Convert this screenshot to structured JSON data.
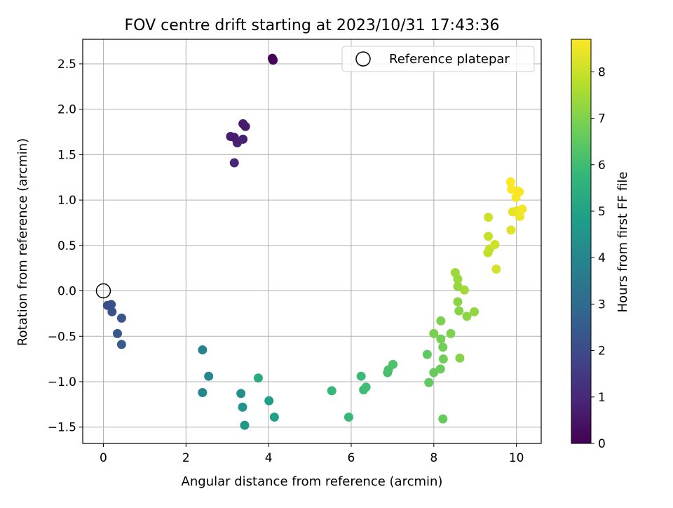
{
  "chart_data": {
    "type": "scatter",
    "title": "FOV centre drift starting at 2023/10/31 17:43:36",
    "xlabel": "Angular distance from reference (arcmin)",
    "ylabel": "Rotation from reference (arcmin)",
    "xlim": [
      -0.5,
      10.6
    ],
    "ylim": [
      -1.68,
      2.77
    ],
    "xticks": [
      0,
      2,
      4,
      6,
      8,
      10
    ],
    "xtick_labels": [
      "0",
      "2",
      "4",
      "6",
      "8",
      "10"
    ],
    "yticks": [
      -1.5,
      -1.0,
      -0.5,
      0.0,
      0.5,
      1.0,
      1.5,
      2.0,
      2.5
    ],
    "ytick_labels": [
      "−1.5",
      "−1.0",
      "−0.5",
      "0.0",
      "0.5",
      "1.0",
      "1.5",
      "2.0",
      "2.5"
    ],
    "grid": true,
    "legend": {
      "position": "top-right",
      "entries": [
        "Reference platepar"
      ]
    },
    "reference_point": {
      "x": 0,
      "y": 0
    },
    "colorbar": {
      "label": "Hours from first FF file",
      "range": [
        0,
        8.7
      ],
      "ticks": [
        0,
        1,
        2,
        3,
        4,
        5,
        6,
        7,
        8
      ],
      "tick_labels": [
        "0",
        "1",
        "2",
        "3",
        "4",
        "5",
        "6",
        "7",
        "8"
      ],
      "colormap_stops": [
        "#440154",
        "#482878",
        "#3e4989",
        "#31688e",
        "#26828e",
        "#1f9e89",
        "#35b779",
        "#6ece58",
        "#b5de2b",
        "#fde725"
      ]
    },
    "points": [
      {
        "x": 4.09,
        "y": 2.56,
        "c": 0.05
      },
      {
        "x": 4.11,
        "y": 2.54,
        "c": 0.1
      },
      {
        "x": 3.38,
        "y": 1.84,
        "c": 0.6
      },
      {
        "x": 3.44,
        "y": 1.81,
        "c": 0.65
      },
      {
        "x": 3.08,
        "y": 1.7,
        "c": 0.7
      },
      {
        "x": 3.17,
        "y": 1.69,
        "c": 0.72
      },
      {
        "x": 3.38,
        "y": 1.67,
        "c": 0.75
      },
      {
        "x": 3.24,
        "y": 1.63,
        "c": 0.8
      },
      {
        "x": 3.17,
        "y": 1.41,
        "c": 0.9
      },
      {
        "x": 0.1,
        "y": -0.16,
        "c": 2.1
      },
      {
        "x": 0.19,
        "y": -0.15,
        "c": 2.15
      },
      {
        "x": 0.21,
        "y": -0.23,
        "c": 2.2
      },
      {
        "x": 0.44,
        "y": -0.3,
        "c": 2.3
      },
      {
        "x": 0.34,
        "y": -0.47,
        "c": 2.4
      },
      {
        "x": 0.44,
        "y": -0.59,
        "c": 2.5
      },
      {
        "x": 2.4,
        "y": -0.65,
        "c": 3.9
      },
      {
        "x": 2.55,
        "y": -0.94,
        "c": 4.0
      },
      {
        "x": 2.4,
        "y": -1.12,
        "c": 4.05
      },
      {
        "x": 3.33,
        "y": -1.13,
        "c": 4.4
      },
      {
        "x": 3.37,
        "y": -1.28,
        "c": 4.5
      },
      {
        "x": 3.42,
        "y": -1.48,
        "c": 4.6
      },
      {
        "x": 4.01,
        "y": -1.21,
        "c": 4.8
      },
      {
        "x": 4.14,
        "y": -1.39,
        "c": 4.9
      },
      {
        "x": 3.75,
        "y": -0.96,
        "c": 5.3
      },
      {
        "x": 5.53,
        "y": -1.1,
        "c": 5.8
      },
      {
        "x": 5.94,
        "y": -1.39,
        "c": 5.85
      },
      {
        "x": 6.24,
        "y": -0.94,
        "c": 5.9
      },
      {
        "x": 6.3,
        "y": -1.09,
        "c": 5.95
      },
      {
        "x": 6.36,
        "y": -1.06,
        "c": 6.0
      },
      {
        "x": 6.88,
        "y": -0.9,
        "c": 6.1
      },
      {
        "x": 6.9,
        "y": -0.87,
        "c": 6.15
      },
      {
        "x": 7.01,
        "y": -0.81,
        "c": 6.2
      },
      {
        "x": 7.84,
        "y": -0.7,
        "c": 6.5
      },
      {
        "x": 7.88,
        "y": -1.01,
        "c": 6.55
      },
      {
        "x": 8.22,
        "y": -1.41,
        "c": 6.6
      },
      {
        "x": 8.0,
        "y": -0.9,
        "c": 6.65
      },
      {
        "x": 8.16,
        "y": -0.86,
        "c": 6.7
      },
      {
        "x": 8.23,
        "y": -0.75,
        "c": 6.75
      },
      {
        "x": 8.22,
        "y": -0.62,
        "c": 6.8
      },
      {
        "x": 8.17,
        "y": -0.53,
        "c": 6.85
      },
      {
        "x": 8.0,
        "y": -0.47,
        "c": 6.9
      },
      {
        "x": 8.17,
        "y": -0.33,
        "c": 6.95
      },
      {
        "x": 8.41,
        "y": -0.47,
        "c": 7.0
      },
      {
        "x": 8.63,
        "y": -0.74,
        "c": 7.05
      },
      {
        "x": 8.61,
        "y": -0.22,
        "c": 7.1
      },
      {
        "x": 8.58,
        "y": -0.12,
        "c": 7.15
      },
      {
        "x": 8.8,
        "y": -0.28,
        "c": 7.2
      },
      {
        "x": 8.98,
        "y": -0.23,
        "c": 7.25
      },
      {
        "x": 8.58,
        "y": 0.05,
        "c": 7.3
      },
      {
        "x": 8.58,
        "y": 0.13,
        "c": 7.35
      },
      {
        "x": 8.52,
        "y": 0.2,
        "c": 7.4
      },
      {
        "x": 8.74,
        "y": 0.01,
        "c": 7.45
      },
      {
        "x": 9.31,
        "y": 0.42,
        "c": 7.9
      },
      {
        "x": 9.35,
        "y": 0.46,
        "c": 7.95
      },
      {
        "x": 9.32,
        "y": 0.6,
        "c": 8.0
      },
      {
        "x": 9.32,
        "y": 0.81,
        "c": 8.05
      },
      {
        "x": 9.48,
        "y": 0.51,
        "c": 8.1
      },
      {
        "x": 9.51,
        "y": 0.24,
        "c": 8.15
      },
      {
        "x": 9.87,
        "y": 0.67,
        "c": 8.3
      },
      {
        "x": 9.91,
        "y": 0.87,
        "c": 8.4
      },
      {
        "x": 10.01,
        "y": 0.88,
        "c": 8.45
      },
      {
        "x": 10.08,
        "y": 0.82,
        "c": 8.5
      },
      {
        "x": 10.14,
        "y": 0.9,
        "c": 8.55
      },
      {
        "x": 9.99,
        "y": 1.03,
        "c": 8.6
      },
      {
        "x": 10.07,
        "y": 1.09,
        "c": 8.62
      },
      {
        "x": 10.02,
        "y": 1.1,
        "c": 8.64
      },
      {
        "x": 9.88,
        "y": 1.12,
        "c": 8.66
      },
      {
        "x": 9.86,
        "y": 1.2,
        "c": 8.68
      }
    ]
  }
}
